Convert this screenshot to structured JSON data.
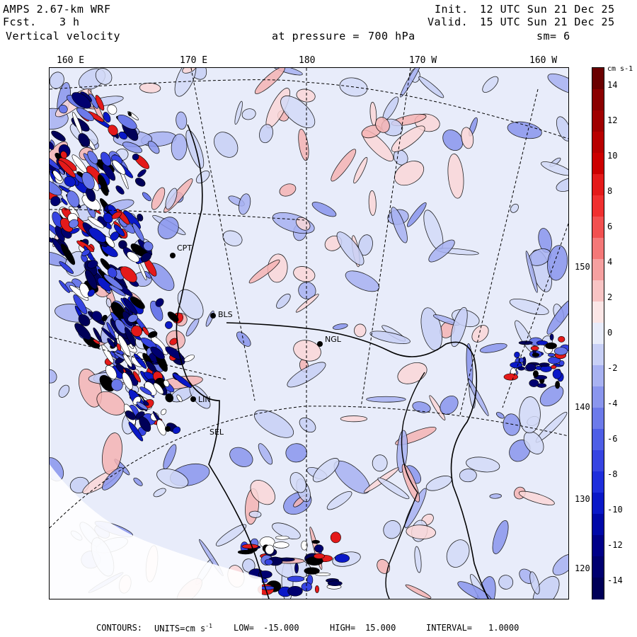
{
  "header": {
    "model": "AMPS 2.67-km WRF",
    "fcst_label": "Fcst.",
    "fcst_value": "3 h",
    "field": "Vertical velocity",
    "init_label": "Init.",
    "init_time": "12 UTC Sun 21 Dec 25",
    "valid_label": "Valid.",
    "valid_time": "15 UTC Sun 21 Dec 25",
    "pressure_label": "at pressure =",
    "pressure_value": "700 hPa",
    "smoothing": "sm= 6"
  },
  "colors": {
    "deep_red": "#7a0000",
    "red": "#e00000",
    "light_red": "#f6c8c8",
    "neutral_pos": "#fbe6e6",
    "neutral_neg": "#e8ecfa",
    "light_blue": "#aab4f0",
    "blue": "#3a4ae6",
    "deep_blue": "#000090"
  },
  "chart_data": {
    "type": "heatmap",
    "title": "Vertical velocity at pressure = 700 hPa",
    "longitude_labels": [
      "160 E",
      "170 E",
      "180",
      "170 W",
      "160 W"
    ],
    "latitude_labels": [
      "150 W",
      "140 W",
      "130 W",
      "120 W"
    ],
    "stations": [
      "CPT",
      "BLS",
      "NGL",
      "LIN",
      "SEL"
    ],
    "station_labels": {
      "CPT": "CPT",
      "BLS": "BLS",
      "NGL": "NGL",
      "LIN": "LIN",
      "SEL": "SEL"
    },
    "colorbar": {
      "units": "cm s-1",
      "min": -15,
      "max": 15,
      "labels": [
        14,
        12,
        10,
        8,
        6,
        4,
        2,
        0,
        -2,
        -4,
        -6,
        -8,
        -10,
        -12,
        -14
      ],
      "colors": [
        "#6a0000",
        "#8a0000",
        "#a00000",
        "#b80000",
        "#cc0000",
        "#e41a1a",
        "#f03030",
        "#f25050",
        "#f47878",
        "#f6a0a0",
        "#f8c4c4",
        "#fbe6e6",
        "#e8ecfa",
        "#c8d0f6",
        "#a8b2f2",
        "#8a96ee",
        "#6c7aea",
        "#4e5ee6",
        "#3644e2",
        "#1e2edc",
        "#0a18c8",
        "#0008a8",
        "#000088",
        "#000070",
        "#000058"
      ]
    },
    "contours": {
      "units": "cm s-1",
      "low": -15.0,
      "high": 15.0,
      "interval": 1.0
    }
  },
  "footer": {
    "contours_label": "CONTOURS:",
    "units_label": "UNITS=cm s",
    "units_sup": "-1",
    "low_label": "LOW=",
    "low_value": "-15.000",
    "high_label": "HIGH=",
    "high_value": "15.000",
    "interval_label": "INTERVAL=",
    "interval_value": "1.0000"
  }
}
